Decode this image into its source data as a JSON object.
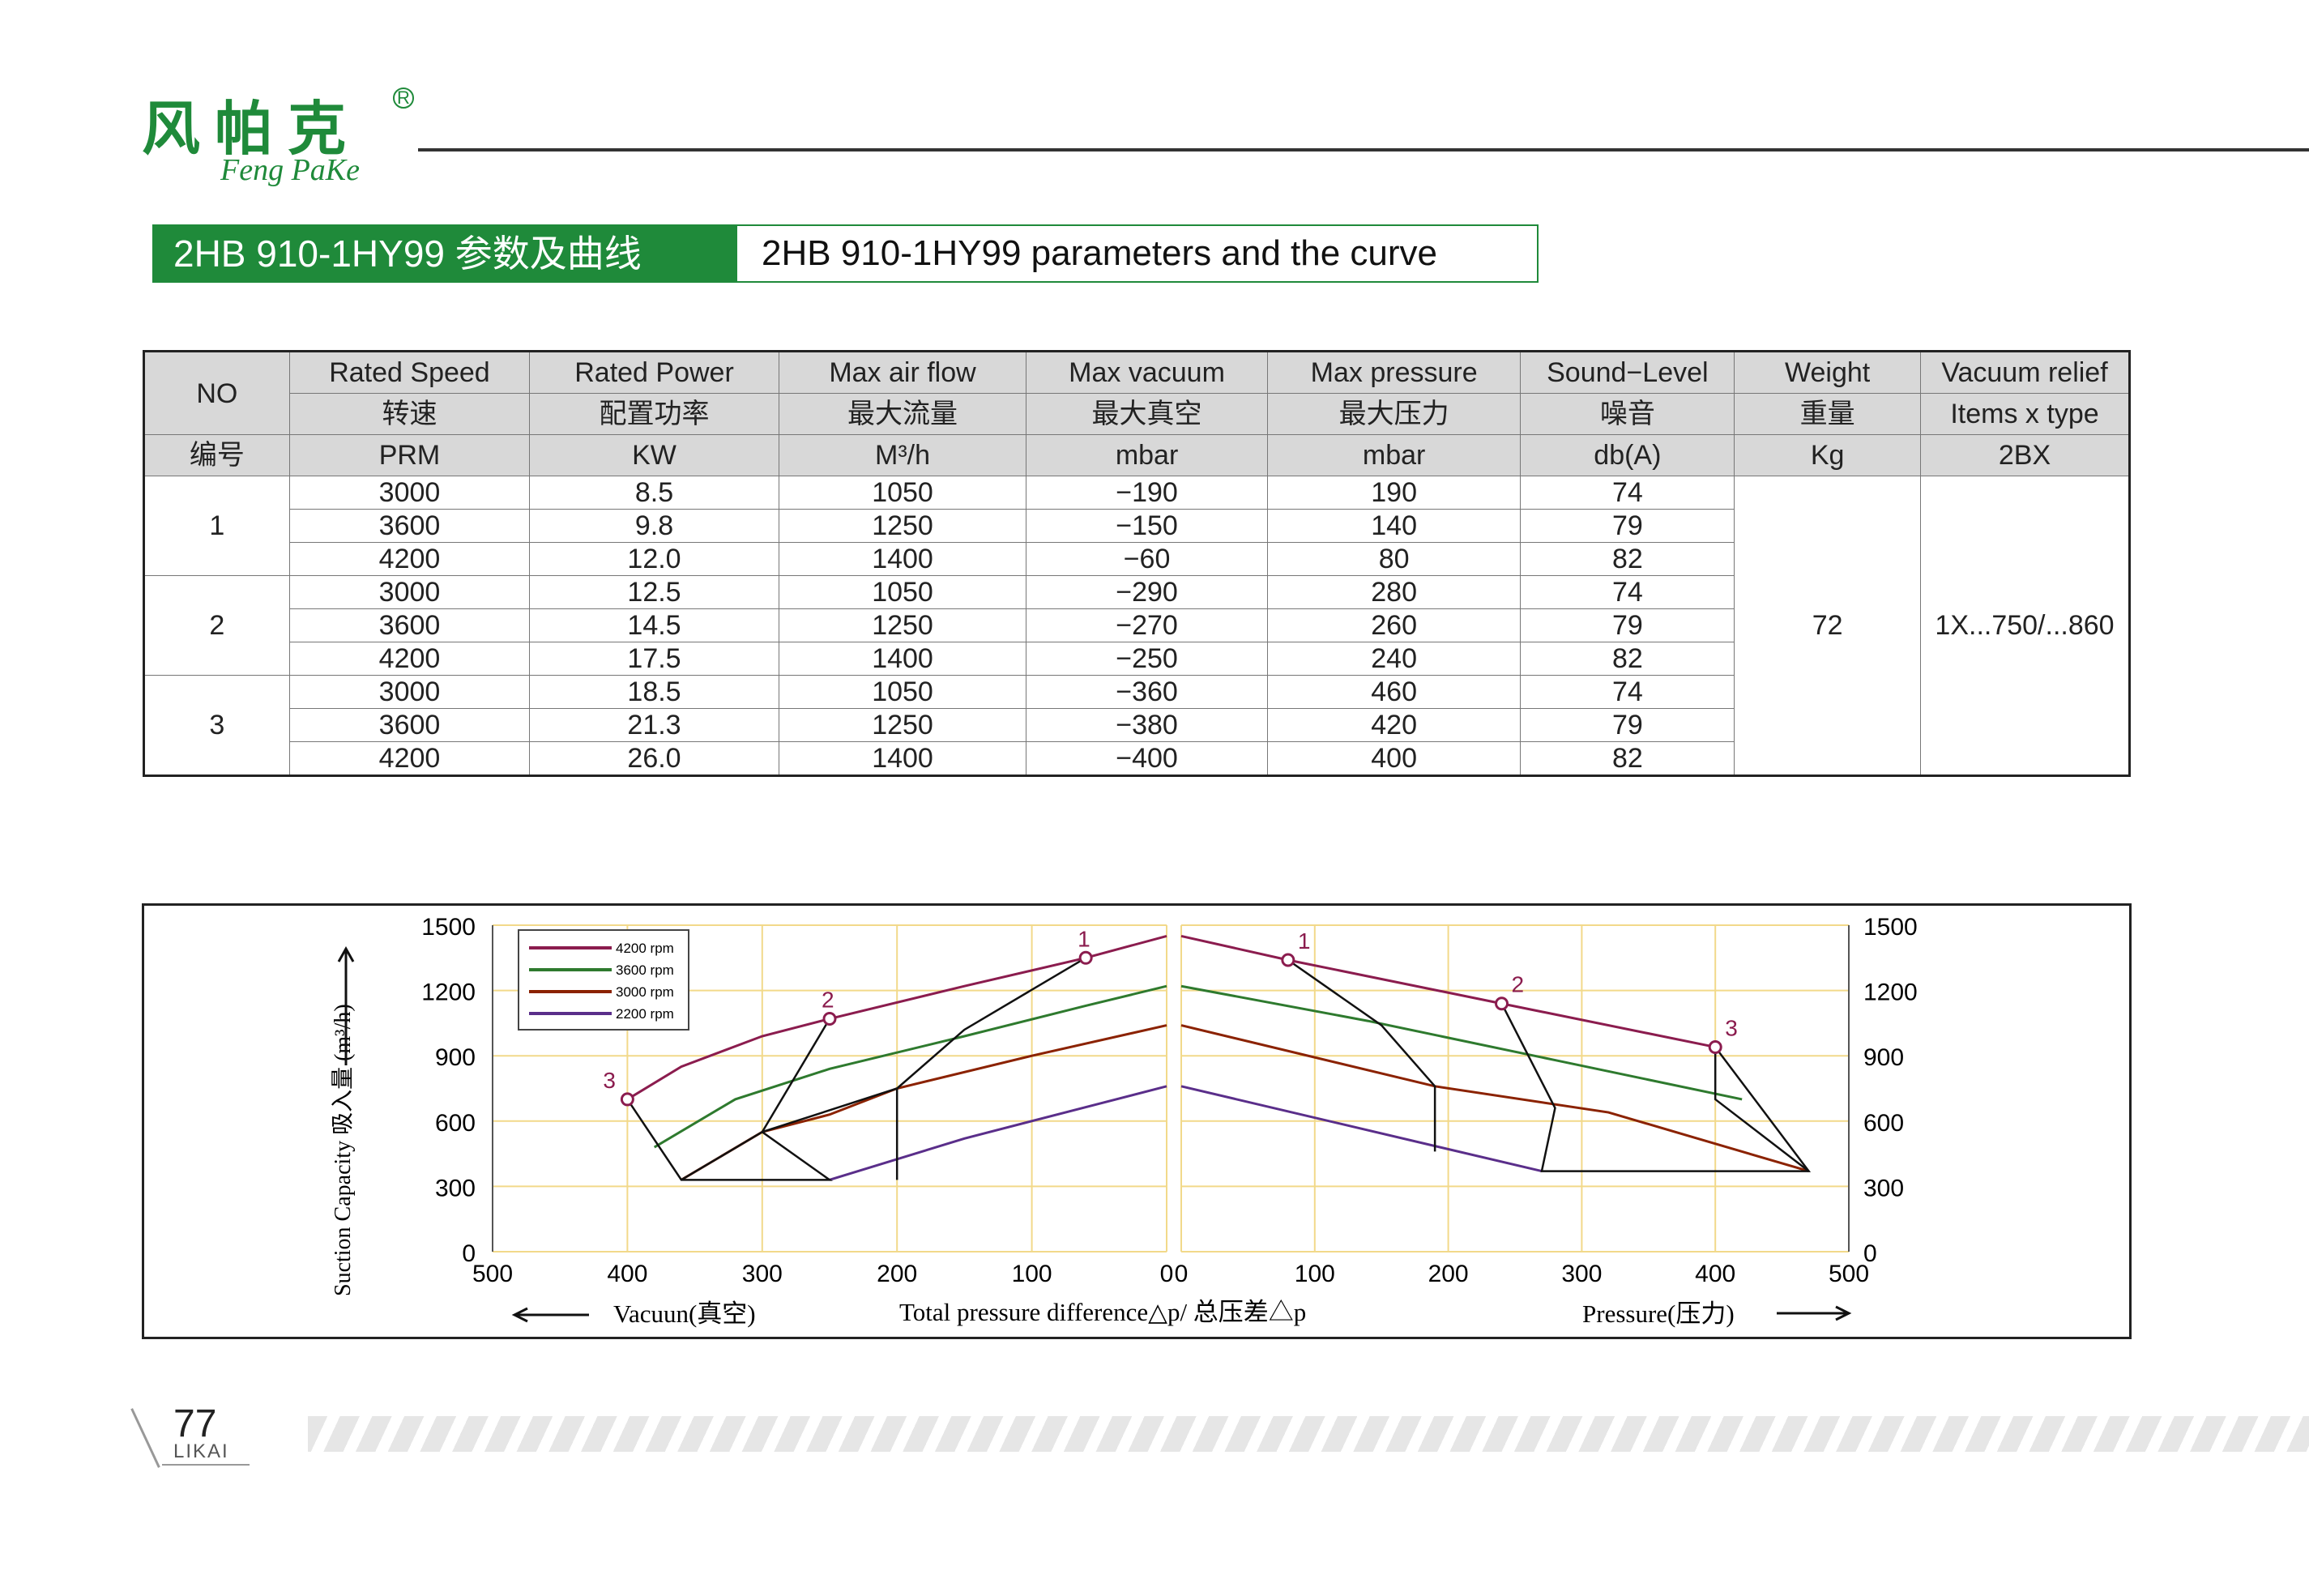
{
  "logo": {
    "cn": "风帕克",
    "en": "Feng PaKe",
    "reg": "R"
  },
  "title": {
    "cn": "2HB 910-1HY99 参数及曲线",
    "en": "2HB 910-1HY99 parameters and the curve"
  },
  "table": {
    "headers": [
      [
        "NO",
        "Rated Speed",
        "Rated Power",
        "Max air flow",
        "Max vacuum",
        "Max pressure",
        "Sound−Level",
        "Weight",
        "Vacuum relief"
      ],
      [
        "",
        "转速",
        "配置功率",
        "最大流量",
        "最大真空",
        "最大压力",
        "噪音",
        "重量",
        "Items x type"
      ],
      [
        "编号",
        "PRM",
        "KW",
        "M³/h",
        "mbar",
        "mbar",
        "db(A)",
        "Kg",
        "2BX"
      ]
    ],
    "groups": [
      "1",
      "2",
      "3"
    ],
    "rows": [
      [
        "3000",
        "8.5",
        "1050",
        "−190",
        "190",
        "74"
      ],
      [
        "3600",
        "9.8",
        "1250",
        "−150",
        "140",
        "79"
      ],
      [
        "4200",
        "12.0",
        "1400",
        "−60",
        "80",
        "82"
      ],
      [
        "3000",
        "12.5",
        "1050",
        "−290",
        "280",
        "74"
      ],
      [
        "3600",
        "14.5",
        "1250",
        "−270",
        "260",
        "79"
      ],
      [
        "4200",
        "17.5",
        "1400",
        "−250",
        "240",
        "82"
      ],
      [
        "3000",
        "18.5",
        "1050",
        "−360",
        "460",
        "74"
      ],
      [
        "3600",
        "21.3",
        "1250",
        "−380",
        "420",
        "79"
      ],
      [
        "4200",
        "26.0",
        "1400",
        "−400",
        "400",
        "82"
      ]
    ],
    "weight": "72",
    "relief": "1X...750/...860"
  },
  "chart_data": {
    "type": "line",
    "ylabel": "Suction Capacity 吸入量 (m³/h)",
    "xlabel": "Total pressure difference△p/ 总压差△p",
    "xlabel_left": "Vacuun(真空)",
    "xlabel_right": "Pressure(压力)",
    "ylim": [
      0,
      1500
    ],
    "yticks": [
      "0",
      "300",
      "600",
      "900",
      "1200",
      "1500"
    ],
    "xticks_left": [
      "500",
      "400",
      "300",
      "200",
      "100",
      "0"
    ],
    "xticks_right": [
      "0",
      "100",
      "200",
      "300",
      "400",
      "500"
    ],
    "legend": [
      "4200 rpm",
      "3600 rpm",
      "3000 rpm",
      "2200 rpm"
    ],
    "legend_position": "top-left",
    "colors": {
      "4200 rpm": "#8b1c4e",
      "3600 rpm": "#2e7a2e",
      "3000 rpm": "#8b2200",
      "2200 rpm": "#5a2e8a"
    },
    "markers": [
      "1",
      "2",
      "3"
    ],
    "vacuum_series": [
      {
        "name": "4200 rpm",
        "x": [
          400,
          360,
          300,
          250,
          150,
          60,
          0
        ],
        "y": [
          700,
          850,
          990,
          1070,
          1220,
          1350,
          1450
        ]
      },
      {
        "name": "3600 rpm",
        "x": [
          380,
          320,
          250,
          150,
          60,
          0
        ],
        "y": [
          480,
          700,
          840,
          990,
          1130,
          1220
        ]
      },
      {
        "name": "3000 rpm",
        "x": [
          360,
          300,
          250,
          200,
          100,
          0
        ],
        "y": [
          330,
          550,
          630,
          750,
          900,
          1040
        ]
      },
      {
        "name": "2200 rpm",
        "x": [
          250,
          150,
          50,
          0
        ],
        "y": [
          330,
          520,
          680,
          760
        ]
      }
    ],
    "pressure_series": [
      {
        "name": "4200 rpm",
        "x": [
          0,
          80,
          240,
          400
        ],
        "y": [
          1450,
          1340,
          1140,
          940
        ]
      },
      {
        "name": "3600 rpm",
        "x": [
          0,
          140,
          280,
          420
        ],
        "y": [
          1220,
          1060,
          880,
          700
        ]
      },
      {
        "name": "3000 rpm",
        "x": [
          0,
          190,
          320,
          470
        ],
        "y": [
          1040,
          760,
          640,
          370
        ]
      },
      {
        "name": "2200 rpm",
        "x": [
          0,
          270
        ],
        "y": [
          760,
          370
        ]
      }
    ]
  },
  "page": {
    "number": "77",
    "sub": "LIKAI"
  }
}
